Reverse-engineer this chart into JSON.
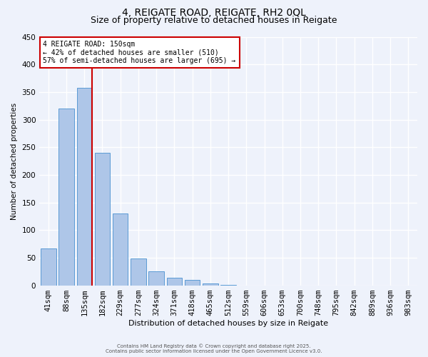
{
  "title1": "4, REIGATE ROAD, REIGATE, RH2 0QL",
  "title2": "Size of property relative to detached houses in Reigate",
  "bar_labels": [
    "41sqm",
    "88sqm",
    "135sqm",
    "182sqm",
    "229sqm",
    "277sqm",
    "324sqm",
    "371sqm",
    "418sqm",
    "465sqm",
    "512sqm",
    "559sqm",
    "606sqm",
    "653sqm",
    "700sqm",
    "748sqm",
    "795sqm",
    "842sqm",
    "889sqm",
    "936sqm",
    "983sqm"
  ],
  "bar_values": [
    67,
    320,
    357,
    240,
    130,
    49,
    25,
    14,
    10,
    3,
    1,
    0,
    0,
    0,
    0,
    0,
    0,
    0,
    0,
    0,
    0
  ],
  "bar_color": "#aec6e8",
  "bar_edge_color": "#5b9bd5",
  "vline_x_pos": 2.5,
  "vline_color": "#cc0000",
  "ylabel": "Number of detached properties",
  "xlabel": "Distribution of detached houses by size in Reigate",
  "ylim": [
    0,
    450
  ],
  "yticks": [
    0,
    50,
    100,
    150,
    200,
    250,
    300,
    350,
    400,
    450
  ],
  "annotation_title": "4 REIGATE ROAD: 150sqm",
  "annotation_line1": "← 42% of detached houses are smaller (510)",
  "annotation_line2": "57% of semi-detached houses are larger (695) →",
  "annotation_box_color": "#ffffff",
  "annotation_box_edge": "#cc0000",
  "footer1": "Contains HM Land Registry data © Crown copyright and database right 2025.",
  "footer2": "Contains public sector information licensed under the Open Government Licence v3.0.",
  "bg_color": "#eef2fb",
  "grid_color": "#ffffff",
  "title1_fontsize": 10,
  "title2_fontsize": 9,
  "axis_fontsize": 7.5,
  "ylabel_fontsize": 7.5,
  "xlabel_fontsize": 8,
  "annotation_fontsize": 7,
  "footer_fontsize": 5
}
